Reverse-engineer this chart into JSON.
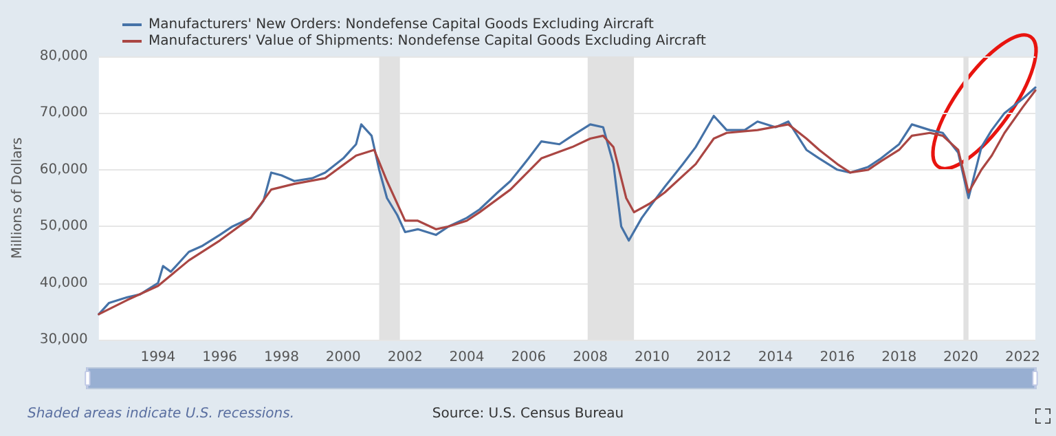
{
  "chart_data": {
    "type": "line",
    "ylabel": "Millions of Dollars",
    "legend": "top left",
    "grid": "y",
    "line_style": "solid",
    "marker": "none",
    "xlim": [
      "1992-02",
      "2022-06"
    ],
    "xticks": [
      "1994",
      "1996",
      "1998",
      "2000",
      "2002",
      "2004",
      "2006",
      "2008",
      "2010",
      "2012",
      "2014",
      "2016",
      "2018",
      "2020",
      "2022"
    ],
    "ylim": [
      30000,
      80000
    ],
    "yticks": [
      {
        "value": 30000,
        "label": "30,000"
      },
      {
        "value": 40000,
        "label": "40,000"
      },
      {
        "value": 50000,
        "label": "50,000"
      },
      {
        "value": 60000,
        "label": "60,000"
      },
      {
        "value": 70000,
        "label": "70,000"
      },
      {
        "value": 80000,
        "label": "80,000"
      }
    ],
    "bands": [
      {
        "axis": "x",
        "from": "2001-03",
        "to": "2001-11",
        "color": "#e1e1e1"
      },
      {
        "axis": "x",
        "from": "2007-12",
        "to": "2009-06",
        "color": "#e1e1e1"
      },
      {
        "axis": "x",
        "from": "2020-02",
        "to": "2020-04",
        "color": "#e1e1e1"
      }
    ],
    "annotations": [
      "Shaded areas indicate U.S. recessions.",
      "Source: U.S. Census Bureau"
    ],
    "series": [
      {
        "name": "Manufacturers' New Orders: Nondefense Capital Goods Excluding Aircraft",
        "color": "#4572a7",
        "x": [
          "1992-02",
          "1992-06",
          "1993-01",
          "1993-06",
          "1994-01",
          "1994-03",
          "1994-06",
          "1995-01",
          "1995-06",
          "1996-01",
          "1996-06",
          "1997-01",
          "1997-06",
          "1997-09",
          "1998-01",
          "1998-06",
          "1999-01",
          "1999-06",
          "2000-01",
          "2000-06",
          "2000-08",
          "2000-12",
          "2001-03",
          "2001-06",
          "2001-10",
          "2002-01",
          "2002-06",
          "2003-01",
          "2003-06",
          "2004-01",
          "2004-06",
          "2005-01",
          "2005-06",
          "2006-01",
          "2006-06",
          "2007-01",
          "2007-06",
          "2008-01",
          "2008-06",
          "2008-10",
          "2009-01",
          "2009-04",
          "2009-09",
          "2010-01",
          "2010-06",
          "2011-01",
          "2011-06",
          "2012-01",
          "2012-06",
          "2013-01",
          "2013-06",
          "2014-01",
          "2014-06",
          "2015-01",
          "2015-06",
          "2016-01",
          "2016-06",
          "2017-01",
          "2017-06",
          "2018-01",
          "2018-06",
          "2019-01",
          "2019-06",
          "2019-12",
          "2020-04",
          "2020-09",
          "2021-01",
          "2021-06",
          "2022-01",
          "2022-06"
        ],
        "values": [
          34500,
          36500,
          37500,
          38000,
          40000,
          43000,
          42000,
          45500,
          46500,
          48500,
          50000,
          51500,
          54500,
          59500,
          59000,
          58000,
          58500,
          59500,
          62000,
          64500,
          68000,
          66000,
          60000,
          55000,
          52000,
          49000,
          49500,
          48500,
          50000,
          51500,
          53000,
          56000,
          58000,
          62000,
          65000,
          64500,
          66000,
          68000,
          67500,
          61000,
          50000,
          47500,
          51500,
          54000,
          57000,
          61000,
          64000,
          69500,
          67000,
          67000,
          68500,
          67500,
          68500,
          63500,
          62000,
          60000,
          59500,
          60500,
          62000,
          64500,
          68000,
          67000,
          66500,
          63000,
          55000,
          64000,
          67000,
          70000,
          72500,
          74500
        ]
      },
      {
        "name": "Manufacturers' Value of Shipments: Nondefense Capital Goods Excluding Aircraft",
        "color": "#aa4643",
        "x": [
          "1992-02",
          "1993-01",
          "1994-01",
          "1995-01",
          "1996-01",
          "1997-01",
          "1997-09",
          "1998-06",
          "1999-06",
          "2000-06",
          "2001-01",
          "2001-06",
          "2002-01",
          "2002-06",
          "2003-01",
          "2003-06",
          "2004-01",
          "2004-06",
          "2005-06",
          "2006-06",
          "2007-06",
          "2008-01",
          "2008-06",
          "2008-10",
          "2009-03",
          "2009-06",
          "2009-12",
          "2010-06",
          "2011-06",
          "2012-01",
          "2012-06",
          "2013-06",
          "2014-06",
          "2015-01",
          "2015-06",
          "2016-01",
          "2016-06",
          "2017-01",
          "2017-06",
          "2018-01",
          "2018-06",
          "2019-01",
          "2019-06",
          "2019-12",
          "2020-04",
          "2020-09",
          "2021-01",
          "2021-06",
          "2022-01",
          "2022-06"
        ],
        "values": [
          34500,
          37000,
          39500,
          44000,
          47500,
          51500,
          56500,
          57500,
          58500,
          62500,
          63500,
          58000,
          51000,
          51000,
          49500,
          50000,
          51000,
          52500,
          56500,
          62000,
          64000,
          65500,
          66000,
          64000,
          55000,
          52500,
          54000,
          56000,
          61000,
          65500,
          66500,
          67000,
          68000,
          65500,
          63500,
          61000,
          59500,
          60000,
          61500,
          63500,
          66000,
          66500,
          66000,
          63500,
          56000,
          60000,
          62500,
          66500,
          71000,
          74000
        ]
      }
    ]
  }
}
